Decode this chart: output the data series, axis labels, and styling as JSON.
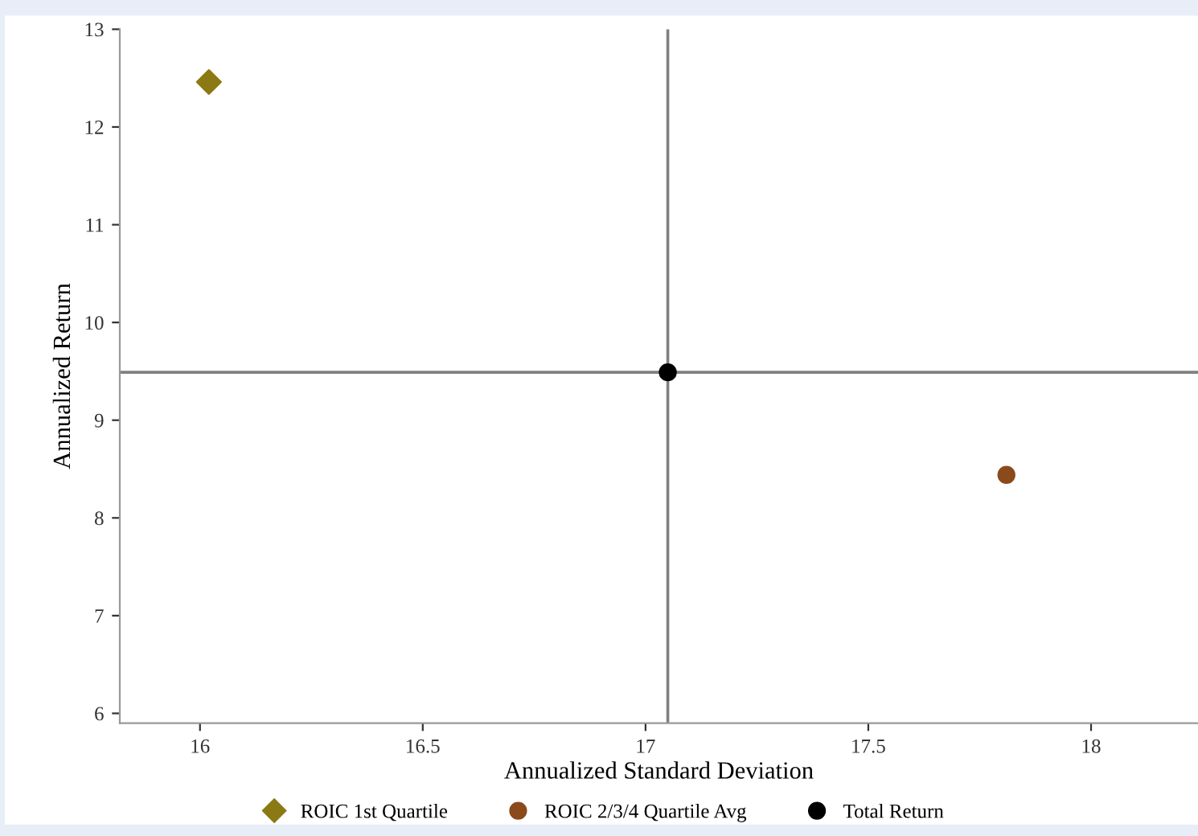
{
  "chart_data": {
    "type": "scatter",
    "xlabel": "Annualized Standard Deviation",
    "ylabel": "Annualized Return",
    "xlim": [
      15.82,
      18.24
    ],
    "ylim": [
      5.9,
      13
    ],
    "xticks": [
      16,
      16.5,
      17,
      17.5,
      18
    ],
    "yticks": [
      6,
      7,
      8,
      9,
      10,
      11,
      12,
      13
    ],
    "grid": false,
    "legend": "bottom",
    "series": [
      {
        "name": "ROIC 1st Quartile",
        "color": "#8b7a14",
        "marker": "diamond",
        "x": [
          16.02
        ],
        "values": [
          12.46
        ]
      },
      {
        "name": "ROIC 2/3/4 Quartile Avg",
        "color": "#8b4a1c",
        "marker": "circle",
        "x": [
          17.81
        ],
        "values": [
          8.44
        ]
      },
      {
        "name": "Total Return",
        "color": "#000000",
        "marker": "circle",
        "x": [
          17.05
        ],
        "values": [
          9.49
        ]
      }
    ],
    "ref_lines": [
      {
        "axis": "x",
        "value": 17.05,
        "color": "#808080"
      },
      {
        "axis": "y",
        "value": 9.49,
        "color": "#808080"
      }
    ]
  }
}
